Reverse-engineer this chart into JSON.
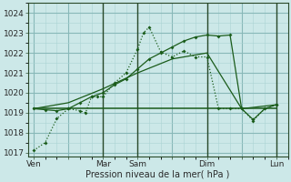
{
  "xlabel": "Pression niveau de la mer( hPa )",
  "bg_color": "#cce8e8",
  "grid_major_color": "#88b8b8",
  "grid_minor_color": "#aad4d4",
  "line_color": "#1a5c1a",
  "ylim": [
    1016.8,
    1024.5
  ],
  "yticks": [
    1017,
    1018,
    1019,
    1020,
    1021,
    1022,
    1023,
    1024
  ],
  "xtick_labels": [
    "Ven",
    "",
    "Mar",
    "Sam",
    "",
    "Dim",
    "",
    "Lun"
  ],
  "xtick_positions": [
    0,
    3,
    6,
    9,
    12,
    15,
    18,
    21
  ],
  "vline_positions": [
    6,
    9,
    15,
    21
  ],
  "xlim": [
    -0.5,
    22
  ],
  "s1_x": [
    0,
    1,
    2,
    3,
    4,
    4.5,
    5,
    5.5,
    6,
    7,
    8,
    9,
    9.5,
    10,
    11,
    12,
    13,
    14,
    15,
    16,
    17,
    18,
    19,
    20,
    21
  ],
  "s1_y": [
    1017.1,
    1017.5,
    1018.7,
    1019.2,
    1019.1,
    1019.0,
    1019.8,
    1019.8,
    1019.8,
    1020.5,
    1021.0,
    1022.2,
    1023.0,
    1023.3,
    1022.05,
    1021.8,
    1022.1,
    1021.8,
    1021.8,
    1019.2,
    1019.2,
    1019.2,
    1018.6,
    1019.2,
    1019.4
  ],
  "s2_x": [
    0,
    1,
    2,
    3,
    4,
    5,
    6,
    7,
    8,
    9,
    10,
    11,
    12,
    13,
    14,
    15,
    16,
    17,
    18,
    19,
    20,
    21
  ],
  "s2_y": [
    1019.2,
    1019.15,
    1019.1,
    1019.2,
    1019.5,
    1019.8,
    1020.0,
    1020.4,
    1020.7,
    1021.2,
    1021.7,
    1022.0,
    1022.3,
    1022.6,
    1022.8,
    1022.9,
    1022.85,
    1022.9,
    1019.2,
    1018.65,
    1019.2,
    1019.4
  ],
  "s3_x": [
    0,
    3,
    6,
    9,
    12,
    15,
    18,
    21
  ],
  "s3_y": [
    1019.2,
    1019.2,
    1019.2,
    1019.2,
    1019.2,
    1019.2,
    1019.2,
    1019.2
  ],
  "s4_x": [
    0,
    3,
    6,
    9,
    12,
    15,
    18,
    21
  ],
  "s4_y": [
    1019.2,
    1019.5,
    1020.2,
    1021.0,
    1021.7,
    1022.0,
    1019.2,
    1019.4
  ]
}
